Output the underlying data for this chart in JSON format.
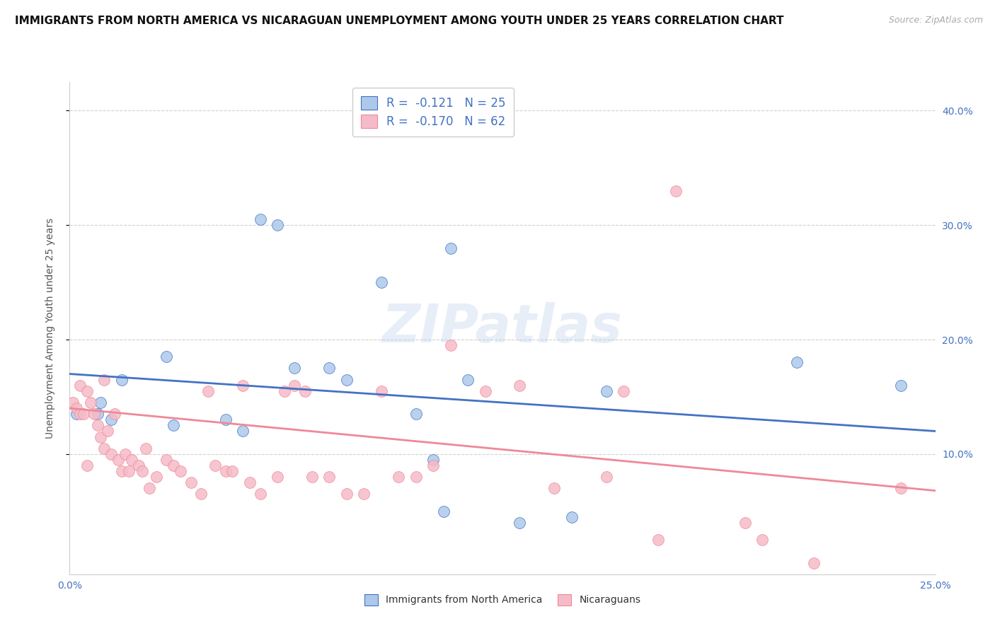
{
  "title": "IMMIGRANTS FROM NORTH AMERICA VS NICARAGUAN UNEMPLOYMENT AMONG YOUTH UNDER 25 YEARS CORRELATION CHART",
  "source": "Source: ZipAtlas.com",
  "ylabel_left": "Unemployment Among Youth under 25 years",
  "x_min": 0.0,
  "x_max": 0.25,
  "y_min": -0.005,
  "y_max": 0.425,
  "right_y_ticks": [
    0.1,
    0.2,
    0.3,
    0.4
  ],
  "right_y_labels": [
    "10.0%",
    "20.0%",
    "30.0%",
    "40.0%"
  ],
  "x_ticks": [
    0.0,
    0.05,
    0.1,
    0.15,
    0.2,
    0.25
  ],
  "x_tick_labels": [
    "0.0%",
    "",
    "",
    "",
    "",
    "25.0%"
  ],
  "legend_top_labels": [
    "R =  -0.121   N = 25",
    "R =  -0.170   N = 62"
  ],
  "legend_bottom_labels": [
    "Immigrants from North America",
    "Nicaraguans"
  ],
  "blue_color": "#adc9ea",
  "pink_color": "#f5bbc8",
  "blue_line_color": "#4472c4",
  "pink_line_color": "#f08898",
  "blue_trend_y": [
    0.17,
    0.12
  ],
  "pink_trend_y": [
    0.14,
    0.068
  ],
  "background_color": "#ffffff",
  "grid_color": "#d0d0d0",
  "title_fontsize": 11,
  "source_fontsize": 9,
  "blue_points_x": [
    0.002,
    0.008,
    0.009,
    0.012,
    0.015,
    0.028,
    0.03,
    0.045,
    0.05,
    0.055,
    0.06,
    0.065,
    0.075,
    0.08,
    0.09,
    0.1,
    0.105,
    0.108,
    0.11,
    0.115,
    0.13,
    0.145,
    0.155,
    0.21,
    0.24
  ],
  "blue_points_y": [
    0.135,
    0.135,
    0.145,
    0.13,
    0.165,
    0.185,
    0.125,
    0.13,
    0.12,
    0.305,
    0.3,
    0.175,
    0.175,
    0.165,
    0.25,
    0.135,
    0.095,
    0.05,
    0.28,
    0.165,
    0.04,
    0.045,
    0.155,
    0.18,
    0.16
  ],
  "pink_points_x": [
    0.001,
    0.002,
    0.003,
    0.003,
    0.004,
    0.005,
    0.005,
    0.006,
    0.007,
    0.008,
    0.009,
    0.01,
    0.01,
    0.011,
    0.012,
    0.013,
    0.014,
    0.015,
    0.016,
    0.017,
    0.018,
    0.02,
    0.021,
    0.022,
    0.023,
    0.025,
    0.028,
    0.03,
    0.032,
    0.035,
    0.038,
    0.04,
    0.042,
    0.045,
    0.047,
    0.05,
    0.052,
    0.055,
    0.06,
    0.062,
    0.065,
    0.068,
    0.07,
    0.075,
    0.08,
    0.085,
    0.09,
    0.095,
    0.1,
    0.105,
    0.11,
    0.12,
    0.13,
    0.14,
    0.155,
    0.16,
    0.17,
    0.175,
    0.195,
    0.2,
    0.215,
    0.24
  ],
  "pink_points_y": [
    0.145,
    0.14,
    0.135,
    0.16,
    0.135,
    0.09,
    0.155,
    0.145,
    0.135,
    0.125,
    0.115,
    0.165,
    0.105,
    0.12,
    0.1,
    0.135,
    0.095,
    0.085,
    0.1,
    0.085,
    0.095,
    0.09,
    0.085,
    0.105,
    0.07,
    0.08,
    0.095,
    0.09,
    0.085,
    0.075,
    0.065,
    0.155,
    0.09,
    0.085,
    0.085,
    0.16,
    0.075,
    0.065,
    0.08,
    0.155,
    0.16,
    0.155,
    0.08,
    0.08,
    0.065,
    0.065,
    0.155,
    0.08,
    0.08,
    0.09,
    0.195,
    0.155,
    0.16,
    0.07,
    0.08,
    0.155,
    0.025,
    0.33,
    0.04,
    0.025,
    0.005,
    0.07
  ]
}
